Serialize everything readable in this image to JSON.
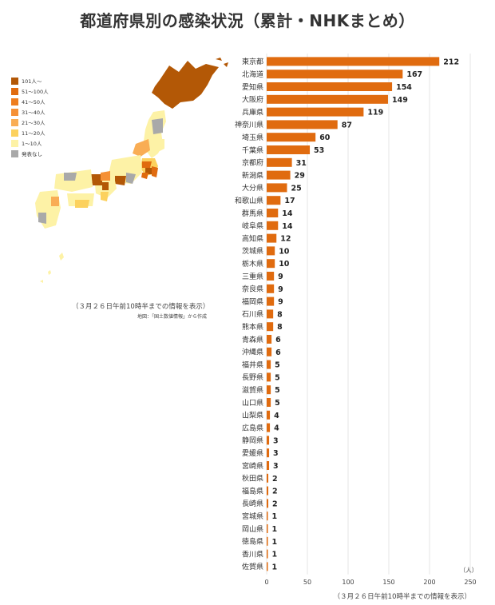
{
  "title": "都道府県別の感染状況（累計・NHKまとめ）",
  "legend": [
    {
      "label": "101人〜",
      "color": "#b35806"
    },
    {
      "label": "51〜100人",
      "color": "#e06b0f"
    },
    {
      "label": "41〜50人",
      "color": "#ee7d1e"
    },
    {
      "label": "31〜40人",
      "color": "#f59035"
    },
    {
      "label": "21〜30人",
      "color": "#f9ad55"
    },
    {
      "label": "11〜20人",
      "color": "#fcd15e"
    },
    {
      "label": "1〜10人",
      "color": "#fdf2a6"
    },
    {
      "label": "発表なし",
      "color": "#a9a9a9"
    }
  ],
  "map_note": "（３月２６日午前10時半までの情報を表示）",
  "map_source": "地図：「国土数値情報」から作成",
  "bottom_note": "（３月２６日午前10時半までの情報を表示）",
  "chart_data": {
    "type": "bar",
    "orientation": "horizontal",
    "categories": [
      "東京都",
      "北海道",
      "愛知県",
      "大阪府",
      "兵庫県",
      "神奈川県",
      "埼玉県",
      "千葉県",
      "京都府",
      "新潟県",
      "大分県",
      "和歌山県",
      "群馬県",
      "岐阜県",
      "高知県",
      "茨城県",
      "栃木県",
      "三重県",
      "奈良県",
      "福岡県",
      "石川県",
      "熊本県",
      "青森県",
      "沖縄県",
      "福井県",
      "長野県",
      "滋賀県",
      "山口県",
      "山梨県",
      "広島県",
      "静岡県",
      "愛媛県",
      "宮崎県",
      "秋田県",
      "福島県",
      "長崎県",
      "宮城県",
      "岡山県",
      "徳島県",
      "香川県",
      "佐賀県"
    ],
    "values": [
      212,
      167,
      154,
      149,
      119,
      87,
      60,
      53,
      31,
      29,
      25,
      17,
      14,
      14,
      12,
      10,
      10,
      9,
      9,
      9,
      8,
      8,
      6,
      6,
      5,
      5,
      5,
      5,
      4,
      4,
      3,
      3,
      3,
      2,
      2,
      2,
      1,
      1,
      1,
      1,
      1
    ],
    "xlim": [
      0,
      250
    ],
    "xticks": [
      0,
      50,
      100,
      150,
      200,
      250
    ],
    "xunit": "（人）",
    "grid": true,
    "bar_color": "#e06b0f"
  }
}
